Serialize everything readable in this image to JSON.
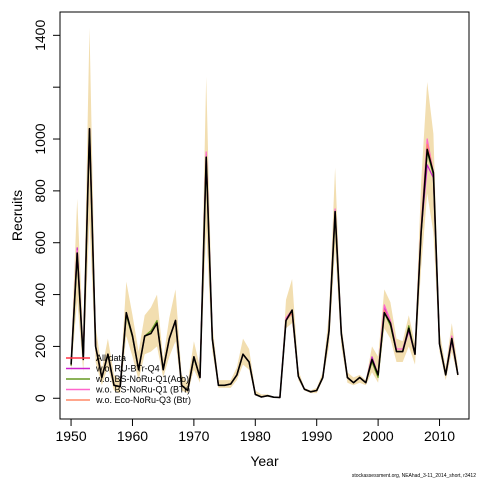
{
  "chart_data": {
    "type": "line",
    "xlabel": "Year",
    "ylabel": "Recruits",
    "xlim": [
      1948.2,
      2014.8
    ],
    "ylim": [
      -80,
      1490
    ],
    "x_ticks": [
      1950,
      1960,
      1970,
      1980,
      1990,
      2000,
      2010
    ],
    "y_ticks": [
      0,
      200,
      400,
      600,
      800,
      1000,
      1400
    ],
    "y_minor_ticks": [
      1200
    ],
    "grid": false,
    "legend_position": "bottom-left",
    "footnote": "stockassessment.org, NEAhad_3-11_2014_short, r3412",
    "colors": {
      "band": "#f2deb0",
      "all_data": "#000000",
      "series": [
        "#ff3344",
        "#cc22cc",
        "#669922",
        "#ff66cc",
        "#ff8866"
      ]
    },
    "x": [
      1950,
      1951,
      1952,
      1953,
      1954,
      1955,
      1956,
      1957,
      1958,
      1959,
      1960,
      1961,
      1962,
      1963,
      1964,
      1965,
      1966,
      1967,
      1968,
      1969,
      1970,
      1971,
      1972,
      1973,
      1974,
      1975,
      1976,
      1977,
      1978,
      1979,
      1980,
      1981,
      1982,
      1983,
      1984,
      1985,
      1986,
      1987,
      1988,
      1989,
      1990,
      1991,
      1992,
      1993,
      1994,
      1995,
      1996,
      1997,
      1998,
      1999,
      2000,
      2001,
      2002,
      2003,
      2004,
      2005,
      2006,
      2007,
      2008,
      2009,
      2010,
      2011,
      2012,
      2013
    ],
    "band": {
      "lower": [
        100,
        380,
        100,
        690,
        140,
        50,
        120,
        30,
        20,
        240,
        160,
        70,
        170,
        180,
        200,
        80,
        160,
        220,
        30,
        20,
        110,
        60,
        650,
        180,
        40,
        40,
        40,
        70,
        130,
        110,
        10,
        5,
        5,
        3,
        2,
        270,
        290,
        70,
        30,
        20,
        20,
        70,
        200,
        580,
        200,
        60,
        50,
        60,
        50,
        100,
        60,
        270,
        230,
        140,
        140,
        200,
        130,
        500,
        790,
        640,
        180,
        70,
        180,
        80
      ],
      "upper": [
        180,
        770,
        220,
        1430,
        280,
        110,
        230,
        90,
        70,
        450,
        320,
        180,
        320,
        350,
        400,
        150,
        310,
        420,
        90,
        60,
        220,
        120,
        1240,
        290,
        70,
        70,
        70,
        120,
        230,
        190,
        30,
        15,
        15,
        6,
        5,
        380,
        460,
        110,
        40,
        30,
        40,
        100,
        330,
        890,
        290,
        100,
        80,
        90,
        70,
        200,
        160,
        420,
        370,
        230,
        220,
        320,
        210,
        830,
        1220,
        1020,
        260,
        120,
        290,
        120
      ],
      "note": "approximate confidence band read from the shaded region"
    },
    "series": [
      {
        "name": "All data",
        "values": [
          130,
          560,
          150,
          1040,
          200,
          80,
          170,
          50,
          45,
          330,
          240,
          110,
          240,
          250,
          290,
          110,
          230,
          300,
          50,
          30,
          160,
          80,
          930,
          230,
          50,
          50,
          55,
          90,
          170,
          140,
          15,
          5,
          10,
          4,
          3,
          300,
          340,
          85,
          35,
          25,
          30,
          80,
          260,
          720,
          250,
          80,
          60,
          80,
          60,
          150,
          90,
          330,
          290,
          180,
          180,
          270,
          170,
          640,
          960,
          870,
          210,
          90,
          230,
          90
        ]
      },
      {
        "name": "w.o. RU-BTr-Q4",
        "values": [
          130,
          580,
          150,
          1040,
          200,
          80,
          170,
          50,
          45,
          330,
          240,
          110,
          240,
          250,
          290,
          110,
          230,
          300,
          50,
          30,
          160,
          80,
          940,
          230,
          50,
          50,
          55,
          90,
          170,
          140,
          15,
          5,
          10,
          4,
          3,
          300,
          330,
          85,
          35,
          25,
          30,
          80,
          260,
          720,
          250,
          80,
          60,
          80,
          60,
          160,
          90,
          350,
          290,
          180,
          180,
          260,
          170,
          640,
          900,
          850,
          210,
          90,
          220,
          90
        ]
      },
      {
        "name": "w.o. BS-NoRu-Q1(Aco)",
        "values": [
          125,
          550,
          150,
          1030,
          200,
          80,
          170,
          50,
          45,
          320,
          235,
          110,
          240,
          260,
          300,
          110,
          230,
          300,
          50,
          30,
          155,
          80,
          920,
          230,
          50,
          50,
          55,
          90,
          170,
          140,
          15,
          5,
          10,
          4,
          3,
          300,
          340,
          85,
          35,
          25,
          30,
          80,
          260,
          700,
          250,
          80,
          60,
          80,
          60,
          140,
          80,
          330,
          280,
          180,
          180,
          280,
          170,
          640,
          950,
          860,
          210,
          90,
          230,
          90
        ]
      },
      {
        "name": "w.o. BS-NoRu-Q1 (BTr)",
        "values": [
          130,
          570,
          150,
          1040,
          200,
          80,
          170,
          50,
          45,
          330,
          240,
          110,
          240,
          250,
          290,
          110,
          230,
          300,
          50,
          30,
          160,
          80,
          950,
          230,
          50,
          50,
          55,
          90,
          170,
          140,
          15,
          5,
          10,
          4,
          3,
          310,
          340,
          85,
          35,
          25,
          30,
          80,
          260,
          730,
          250,
          80,
          60,
          80,
          60,
          150,
          90,
          360,
          300,
          190,
          190,
          270,
          170,
          660,
          1000,
          870,
          210,
          90,
          240,
          90
        ]
      },
      {
        "name": "w.o. Eco-NoRu-Q3 (Btr)",
        "values": [
          130,
          560,
          150,
          1030,
          200,
          80,
          170,
          50,
          45,
          330,
          240,
          110,
          240,
          250,
          290,
          110,
          230,
          300,
          50,
          30,
          160,
          80,
          930,
          230,
          50,
          50,
          55,
          90,
          170,
          140,
          15,
          5,
          10,
          4,
          3,
          300,
          330,
          85,
          35,
          25,
          30,
          80,
          260,
          710,
          250,
          80,
          60,
          80,
          60,
          150,
          90,
          340,
          290,
          180,
          180,
          270,
          170,
          650,
          980,
          870,
          210,
          90,
          230,
          90
        ]
      }
    ]
  }
}
